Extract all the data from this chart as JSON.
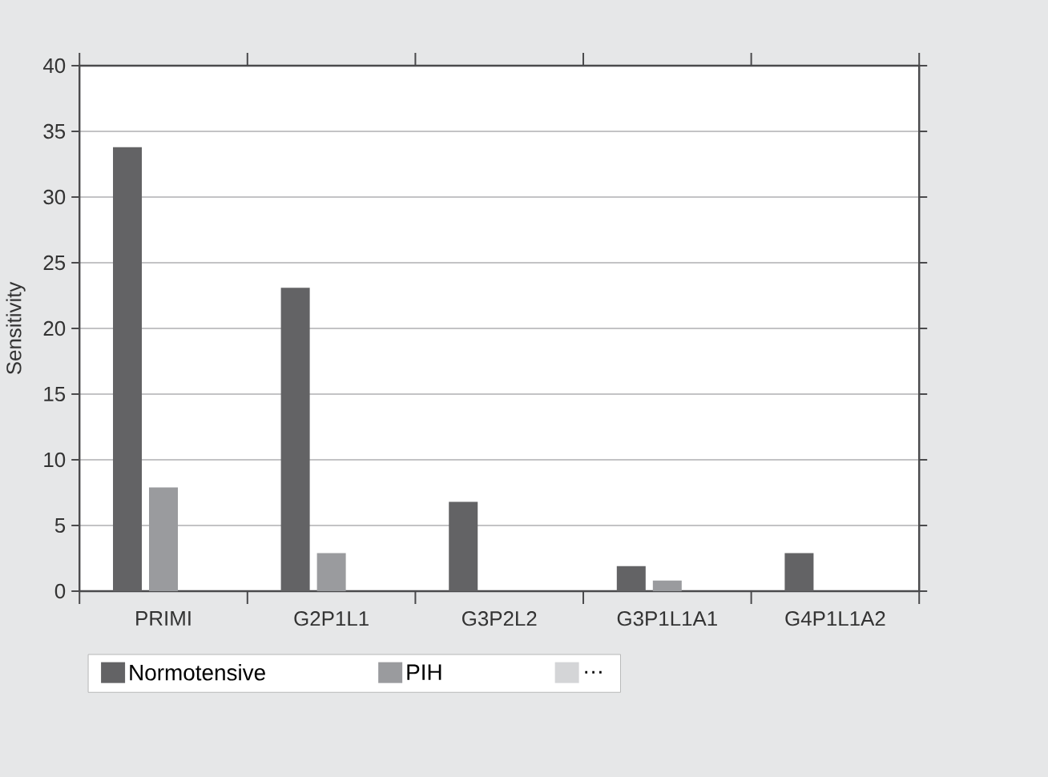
{
  "chart_data": {
    "type": "bar",
    "ylabel": "Sensitivity",
    "categories": [
      "PRIMI",
      "G2P1L1",
      "G3P2L2",
      "G3P1L1A1",
      "G4P1L1A2"
    ],
    "series": [
      {
        "name": "Normotensive",
        "color": "#636365",
        "values": [
          33.8,
          23.1,
          6.8,
          1.9,
          2.9
        ]
      },
      {
        "name": "PIH",
        "color": "#9a9b9e",
        "values": [
          7.9,
          2.9,
          null,
          0.8,
          null
        ]
      },
      {
        "name": "…",
        "color": "#d4d5d7",
        "values": [
          null,
          null,
          null,
          null,
          null
        ]
      }
    ],
    "ylim": [
      0,
      40
    ],
    "yticks": [
      0,
      5,
      10,
      15,
      20,
      25,
      30,
      35,
      40
    ],
    "grid": "y",
    "legend": "bottom"
  }
}
